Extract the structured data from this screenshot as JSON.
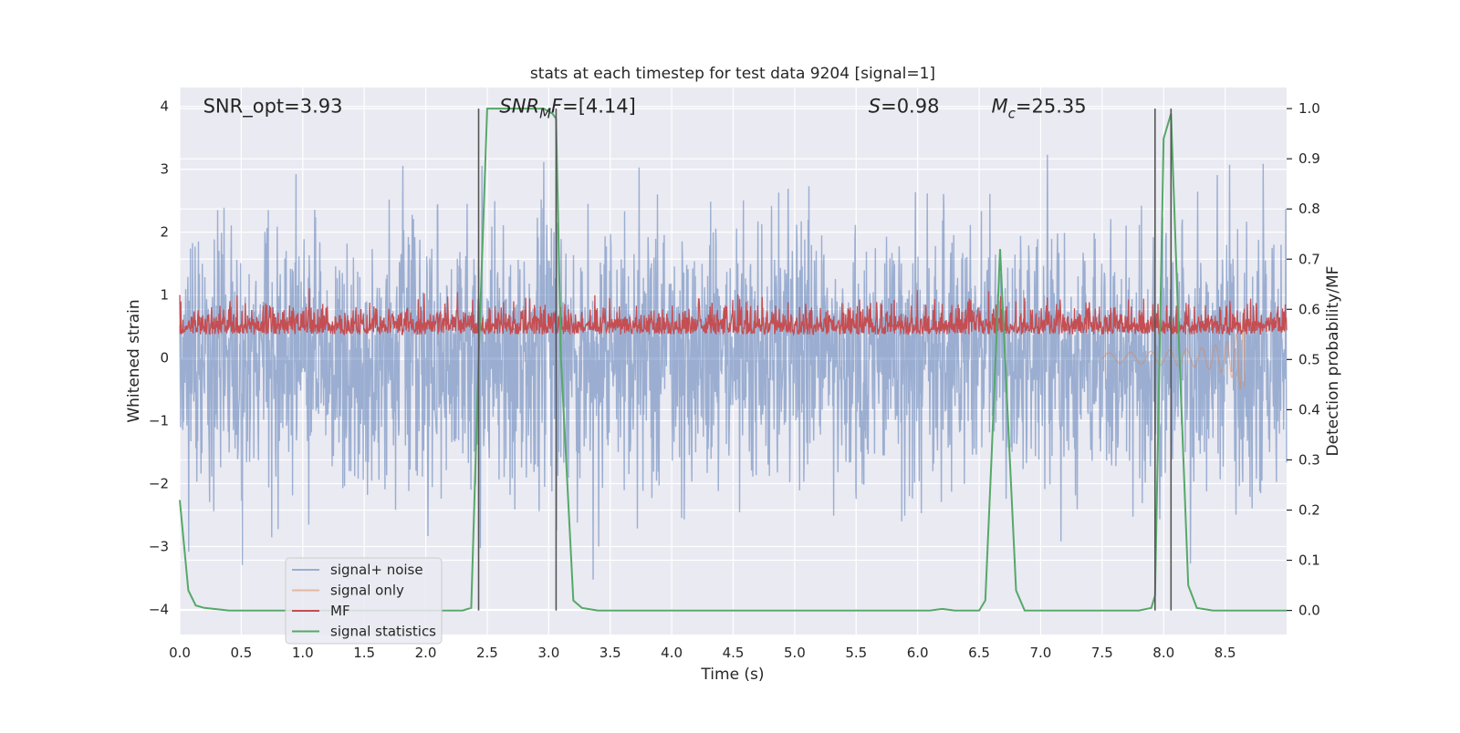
{
  "chart_data": {
    "type": "line",
    "title": "stats at each timestep for test data 9204 [signal=1]",
    "xlabel": "Time (s)",
    "ylabel": "Whitened strain",
    "y2label": "Detection probability/MF",
    "xlim": [
      0,
      9.0
    ],
    "ylim": [
      -4.4,
      4.3
    ],
    "y2lim": [
      -0.048,
      1.042
    ],
    "xticks": [
      0.0,
      0.5,
      1.0,
      1.5,
      2.0,
      2.5,
      3.0,
      3.5,
      4.0,
      4.5,
      5.0,
      5.5,
      6.0,
      6.5,
      7.0,
      7.5,
      8.0,
      8.5
    ],
    "xtick_labels": [
      "0.0",
      "0.5",
      "1.0",
      "1.5",
      "2.0",
      "2.5",
      "3.0",
      "3.5",
      "4.0",
      "4.5",
      "5.0",
      "5.5",
      "6.0",
      "6.5",
      "7.0",
      "7.5",
      "8.0",
      "8.5"
    ],
    "yticks": [
      -4,
      -3,
      -2,
      -1,
      0,
      1,
      2,
      3,
      4
    ],
    "ytick_labels": [
      "−4",
      "−3",
      "−2",
      "−1",
      "0",
      "1",
      "2",
      "3",
      "4"
    ],
    "y2ticks": [
      0.0,
      0.1,
      0.2,
      0.3,
      0.4,
      0.5,
      0.6,
      0.7,
      0.8,
      0.9,
      1.0
    ],
    "y2tick_labels": [
      "0.0",
      "0.1",
      "0.2",
      "0.3",
      "0.4",
      "0.5",
      "0.6",
      "0.7",
      "0.8",
      "0.9",
      "1.0"
    ],
    "grid": true,
    "legend_position": "lower-left",
    "annotations": [
      {
        "id": "snr-opt",
        "x": 0.19,
        "y": 4.0,
        "parts": [
          {
            "text": "SNR_opt=3.93"
          }
        ]
      },
      {
        "id": "snr-mf",
        "x": 2.6,
        "y": 4.0,
        "parts": [
          {
            "text": "SNR",
            "italic": true
          },
          {
            "text": "M",
            "italic": true,
            "sub": true
          },
          {
            "text": "F",
            "italic": true
          },
          {
            "text": "=[4.14]"
          }
        ]
      },
      {
        "id": "overlap",
        "x": 5.6,
        "y": 4.0,
        "parts": [
          {
            "text": "S",
            "italic": true
          },
          {
            "text": "=0.98"
          }
        ]
      },
      {
        "id": "chirp-mass",
        "x": 6.6,
        "y": 4.0,
        "parts": [
          {
            "text": "M",
            "italic": true
          },
          {
            "text": "c",
            "italic": true,
            "sub": true
          },
          {
            "text": "=25.35"
          }
        ]
      }
    ],
    "vertical_markers": [
      2.43,
      3.06,
      7.93,
      8.06
    ],
    "series": [
      {
        "name": "signal+ noise",
        "color": "#4c72b0",
        "alpha": 0.5,
        "style": "noise",
        "axis": "left",
        "description_range": [
          -4.0,
          3.7
        ]
      },
      {
        "name": "signal only",
        "color": "#dd8452",
        "alpha": 0.5,
        "style": "chirp",
        "axis": "left",
        "x_range": [
          7.5,
          8.66
        ]
      },
      {
        "name": "MF",
        "color": "#c44e52",
        "alpha": 1.0,
        "style": "mf-noise",
        "axis": "right"
      },
      {
        "name": "signal statistics",
        "color": "#55a868",
        "alpha": 1.0,
        "style": "line",
        "axis": "right",
        "x": [
          0.0,
          0.07,
          0.13,
          0.2,
          0.4,
          0.6,
          1.0,
          1.5,
          2.0,
          2.3,
          2.37,
          2.43,
          2.5,
          2.8,
          2.96,
          3.03,
          3.06,
          3.1,
          3.2,
          3.27,
          3.4,
          3.6,
          4.0,
          5.0,
          6.0,
          6.1,
          6.2,
          6.3,
          6.5,
          6.55,
          6.6,
          6.67,
          6.73,
          6.8,
          6.87,
          7.0,
          7.5,
          7.8,
          7.9,
          7.93,
          8.0,
          8.06,
          8.13,
          8.2,
          8.27,
          8.4,
          8.6,
          9.0
        ],
        "y": [
          0.22,
          0.04,
          0.01,
          0.005,
          0.0,
          0.0,
          0.0,
          0.0,
          0.0,
          0.0,
          0.005,
          0.5,
          1.0,
          1.0,
          1.0,
          0.99,
          0.98,
          0.5,
          0.02,
          0.005,
          0.0,
          0.0,
          0.0,
          0.0,
          0.0,
          0.0,
          0.003,
          0.0,
          0.0,
          0.02,
          0.3,
          0.72,
          0.4,
          0.04,
          0.0,
          0.0,
          0.0,
          0.0,
          0.005,
          0.03,
          0.94,
          0.99,
          0.5,
          0.05,
          0.005,
          0.0,
          0.0,
          0.0
        ]
      }
    ]
  }
}
